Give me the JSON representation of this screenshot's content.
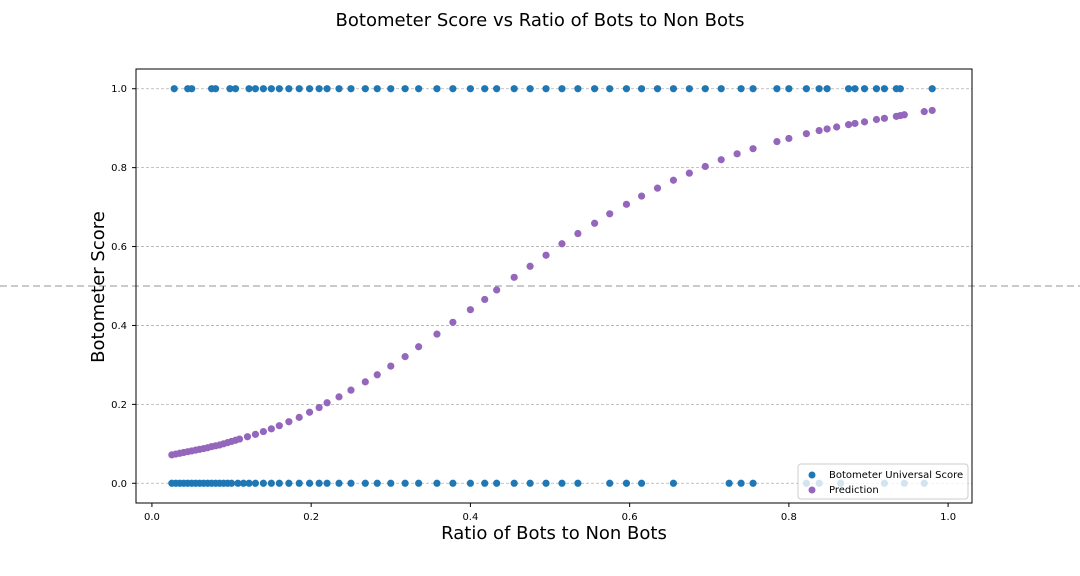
{
  "chart_data": {
    "type": "scatter",
    "title": "Botometer Score vs Ratio of Bots to Non Bots",
    "xlabel": "Ratio of Bots to Non Bots",
    "ylabel": "Botometer Score",
    "xlim": [
      -0.02,
      1.03
    ],
    "ylim": [
      -0.05,
      1.05
    ],
    "xticks": [
      0.0,
      0.2,
      0.4,
      0.6,
      0.8,
      1.0
    ],
    "xtick_labels": [
      "0.0",
      "0.2",
      "0.4",
      "0.6",
      "0.8",
      "1.0"
    ],
    "yticks": [
      0.0,
      0.2,
      0.4,
      0.6,
      0.8,
      1.0
    ],
    "ytick_labels": [
      "0.0",
      "0.2",
      "0.4",
      "0.6",
      "0.8",
      "1.0"
    ],
    "grid": "y-dashed",
    "threshold_line": 0.5,
    "legend_position": "lower-right",
    "colors": {
      "universal": "#1f77b4",
      "prediction": "#9467bd",
      "grid": "#b0b0b0",
      "threshold": "#aaaaaa"
    },
    "series": [
      {
        "name": "Botometer Universal Score",
        "x": [
          0.028,
          0.045,
          0.05,
          0.075,
          0.08,
          0.098,
          0.105,
          0.122,
          0.13,
          0.14,
          0.15,
          0.16,
          0.172,
          0.185,
          0.198,
          0.21,
          0.22,
          0.235,
          0.25,
          0.268,
          0.283,
          0.3,
          0.318,
          0.335,
          0.358,
          0.378,
          0.4,
          0.418,
          0.433,
          0.455,
          0.475,
          0.495,
          0.515,
          0.535,
          0.556,
          0.575,
          0.596,
          0.615,
          0.635,
          0.655,
          0.675,
          0.695,
          0.715,
          0.74,
          0.755,
          0.785,
          0.8,
          0.822,
          0.838,
          0.848,
          0.875,
          0.883,
          0.895,
          0.91,
          0.92,
          0.935,
          0.94,
          0.98,
          0.025,
          0.03,
          0.035,
          0.04,
          0.045,
          0.05,
          0.055,
          0.06,
          0.065,
          0.07,
          0.075,
          0.08,
          0.085,
          0.09,
          0.095,
          0.1,
          0.108,
          0.115,
          0.122,
          0.13,
          0.14,
          0.15,
          0.16,
          0.172,
          0.185,
          0.198,
          0.21,
          0.22,
          0.235,
          0.25,
          0.268,
          0.283,
          0.3,
          0.318,
          0.335,
          0.358,
          0.378,
          0.4,
          0.418,
          0.433,
          0.455,
          0.475,
          0.495,
          0.515,
          0.535,
          0.575,
          0.596,
          0.615,
          0.655,
          0.725,
          0.74,
          0.755,
          0.822,
          0.838,
          0.865,
          0.92,
          0.945,
          0.97
        ],
        "y": [
          1,
          1,
          1,
          1,
          1,
          1,
          1,
          1,
          1,
          1,
          1,
          1,
          1,
          1,
          1,
          1,
          1,
          1,
          1,
          1,
          1,
          1,
          1,
          1,
          1,
          1,
          1,
          1,
          1,
          1,
          1,
          1,
          1,
          1,
          1,
          1,
          1,
          1,
          1,
          1,
          1,
          1,
          1,
          1,
          1,
          1,
          1,
          1,
          1,
          1,
          1,
          1,
          1,
          1,
          1,
          1,
          1,
          1,
          0,
          0,
          0,
          0,
          0,
          0,
          0,
          0,
          0,
          0,
          0,
          0,
          0,
          0,
          0,
          0,
          0,
          0,
          0,
          0,
          0,
          0,
          0,
          0,
          0,
          0,
          0,
          0,
          0,
          0,
          0,
          0,
          0,
          0,
          0,
          0,
          0,
          0,
          0,
          0,
          0,
          0,
          0,
          0,
          0,
          0,
          0,
          0,
          0,
          0,
          0,
          0,
          0,
          0,
          0,
          0,
          0,
          0
        ]
      },
      {
        "name": "Prediction",
        "x": [
          0.025,
          0.03,
          0.035,
          0.04,
          0.045,
          0.05,
          0.055,
          0.06,
          0.065,
          0.07,
          0.075,
          0.08,
          0.085,
          0.09,
          0.095,
          0.1,
          0.105,
          0.11,
          0.12,
          0.13,
          0.14,
          0.15,
          0.16,
          0.172,
          0.185,
          0.198,
          0.21,
          0.22,
          0.235,
          0.25,
          0.268,
          0.283,
          0.3,
          0.318,
          0.335,
          0.358,
          0.378,
          0.4,
          0.418,
          0.433,
          0.455,
          0.475,
          0.495,
          0.515,
          0.535,
          0.556,
          0.575,
          0.596,
          0.615,
          0.635,
          0.655,
          0.675,
          0.695,
          0.715,
          0.735,
          0.755,
          0.785,
          0.8,
          0.822,
          0.838,
          0.848,
          0.86,
          0.875,
          0.883,
          0.895,
          0.91,
          0.92,
          0.935,
          0.94,
          0.945,
          0.97,
          0.98
        ],
        "y": [
          0.072,
          0.074,
          0.076,
          0.078,
          0.08,
          0.082,
          0.084,
          0.086,
          0.088,
          0.09,
          0.093,
          0.095,
          0.097,
          0.1,
          0.103,
          0.106,
          0.109,
          0.112,
          0.118,
          0.124,
          0.131,
          0.138,
          0.146,
          0.156,
          0.167,
          0.18,
          0.192,
          0.204,
          0.219,
          0.236,
          0.257,
          0.275,
          0.297,
          0.321,
          0.346,
          0.378,
          0.408,
          0.44,
          0.466,
          0.49,
          0.522,
          0.55,
          0.578,
          0.607,
          0.633,
          0.659,
          0.683,
          0.707,
          0.728,
          0.748,
          0.768,
          0.786,
          0.803,
          0.82,
          0.835,
          0.848,
          0.866,
          0.874,
          0.886,
          0.894,
          0.898,
          0.903,
          0.909,
          0.912,
          0.916,
          0.922,
          0.925,
          0.93,
          0.932,
          0.934,
          0.942,
          0.945
        ]
      }
    ]
  }
}
